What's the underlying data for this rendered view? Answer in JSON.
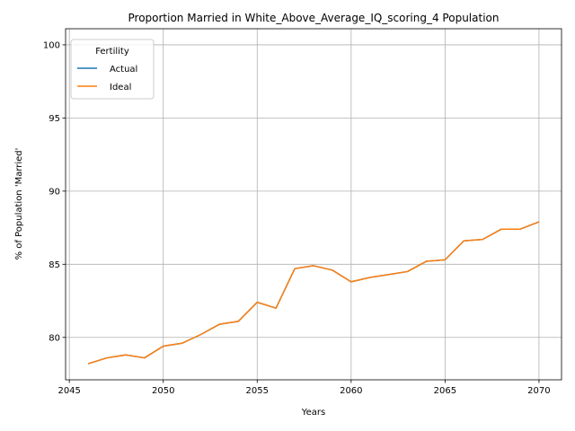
{
  "chart_data": {
    "type": "line",
    "title": "Proportion Married in White_Above_Average_IQ_scoring_4 Population",
    "xlabel": "Years",
    "ylabel": "% of Population 'Married'",
    "xlim": [
      2044.8,
      2071.2
    ],
    "ylim": [
      77.1,
      101.1
    ],
    "xticks": [
      2045,
      2050,
      2055,
      2060,
      2065,
      2070
    ],
    "yticks": [
      80,
      85,
      90,
      95,
      100
    ],
    "grid": true,
    "legend": {
      "title": "Fertility",
      "placement": "top-left"
    },
    "series": [
      {
        "name": "Actual",
        "color": "#1f77b4",
        "x": [
          2046,
          2047,
          2048,
          2049,
          2050,
          2051,
          2052,
          2053,
          2054,
          2055,
          2056,
          2057,
          2058,
          2059,
          2060,
          2061,
          2062,
          2063,
          2064,
          2065,
          2066,
          2067,
          2068,
          2069,
          2070
        ],
        "values": [
          78.2,
          78.6,
          78.8,
          78.6,
          79.4,
          79.6,
          80.2,
          80.9,
          81.1,
          82.4,
          82.0,
          84.7,
          84.9,
          84.6,
          83.8,
          84.1,
          84.3,
          84.5,
          85.2,
          85.3,
          86.6,
          86.7,
          87.4,
          87.4,
          87.9
        ]
      },
      {
        "name": "Ideal",
        "color": "#ff7f0e",
        "x": [
          2046,
          2047,
          2048,
          2049,
          2050,
          2051,
          2052,
          2053,
          2054,
          2055,
          2056,
          2057,
          2058,
          2059,
          2060,
          2061,
          2062,
          2063,
          2064,
          2065,
          2066,
          2067,
          2068,
          2069,
          2070
        ],
        "values": [
          78.2,
          78.6,
          78.8,
          78.6,
          79.4,
          79.6,
          80.2,
          80.9,
          81.1,
          82.4,
          82.0,
          84.7,
          84.9,
          84.6,
          83.8,
          84.1,
          84.3,
          84.5,
          85.2,
          85.3,
          86.6,
          86.7,
          87.4,
          87.4,
          87.9
        ]
      }
    ]
  }
}
